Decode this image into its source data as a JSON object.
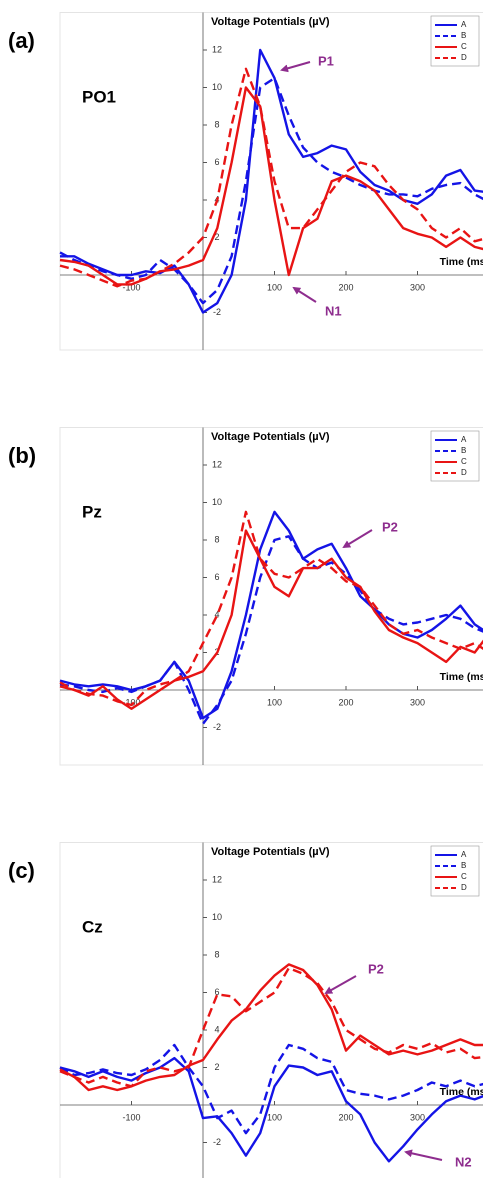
{
  "chart_data": [
    {
      "type": "line",
      "panel_label": "(a)",
      "channel": "PO1",
      "ylabel": "Voltage Potentials (µV)",
      "xlabel": "Time (ms)",
      "x": [
        -200,
        -180,
        -160,
        -140,
        -120,
        -100,
        -80,
        -60,
        -40,
        -20,
        0,
        20,
        40,
        60,
        80,
        100,
        120,
        140,
        160,
        180,
        200,
        220,
        240,
        260,
        280,
        300,
        320,
        340,
        360,
        380,
        400
      ],
      "xlim": [
        -200,
        400
      ],
      "ylim": [
        -4,
        14
      ],
      "xticks": [
        -100,
        100,
        200,
        300
      ],
      "yticks": [
        -2,
        2,
        4,
        6,
        8,
        10,
        12
      ],
      "legend": "upper right",
      "series": [
        {
          "name": "A",
          "color": "#1414e6",
          "dashed": false,
          "values": [
            1.0,
            1.0,
            0.6,
            0.3,
            0,
            0,
            0.2,
            0.1,
            0.5,
            -0.5,
            -2,
            -1.5,
            0,
            4,
            12,
            10.5,
            7.5,
            6.3,
            6.5,
            6.9,
            6.7,
            5.5,
            4.8,
            4.5,
            4.0,
            3.8,
            4.3,
            5.3,
            5.6,
            4.5,
            4.4
          ]
        },
        {
          "name": "B",
          "color": "#1414e6",
          "dashed": true,
          "values": [
            1.2,
            0.8,
            0.5,
            0.2,
            0,
            -0.2,
            0,
            0.8,
            0.3,
            -0.5,
            -1.5,
            -0.8,
            1,
            5,
            10,
            10.5,
            8.5,
            6.8,
            6.0,
            5.5,
            5.2,
            4.8,
            4.5,
            4.3,
            4.3,
            4.2,
            4.6,
            4.8,
            4.9,
            4.3,
            3.9
          ]
        },
        {
          "name": "C",
          "color": "#e81414",
          "dashed": false,
          "values": [
            0.8,
            0.7,
            0.5,
            0,
            -0.5,
            -0.5,
            -0.2,
            0.2,
            0.3,
            0.5,
            0.8,
            2.5,
            6,
            10,
            9,
            4,
            0,
            2.5,
            3,
            5,
            5.3,
            5.0,
            4.5,
            3.5,
            2.5,
            2.2,
            2.0,
            1.5,
            2.0,
            1.5,
            1.3
          ]
        },
        {
          "name": "D",
          "color": "#e81414",
          "dashed": true,
          "values": [
            0.5,
            0.3,
            0,
            -0.3,
            -0.6,
            -0.3,
            -0.2,
            0.2,
            0.6,
            1.2,
            2,
            4,
            8,
            11,
            9,
            5,
            2.5,
            2.5,
            3.5,
            4.5,
            5.5,
            6,
            5.8,
            4.8,
            4.0,
            3.5,
            2.5,
            2.0,
            2.5,
            1.8,
            2.0
          ]
        }
      ],
      "annotations": [
        {
          "text": "P1"
        },
        {
          "text": "N1"
        }
      ]
    },
    {
      "type": "line",
      "panel_label": "(b)",
      "channel": "Pz",
      "ylabel": "Voltage Potentials (µV)",
      "xlabel": "Time (ms)",
      "x": [
        -200,
        -180,
        -160,
        -140,
        -120,
        -100,
        -80,
        -60,
        -40,
        -20,
        0,
        20,
        40,
        60,
        80,
        100,
        120,
        140,
        160,
        180,
        200,
        220,
        240,
        260,
        280,
        300,
        320,
        340,
        360,
        380,
        400
      ],
      "xlim": [
        -200,
        400
      ],
      "ylim": [
        -4,
        14
      ],
      "xticks": [
        -100,
        100,
        200,
        300
      ],
      "yticks": [
        -2,
        2,
        4,
        6,
        8,
        10,
        12
      ],
      "legend": "upper right",
      "series": [
        {
          "name": "A",
          "color": "#1414e6",
          "dashed": false,
          "values": [
            0.5,
            0.3,
            0.2,
            0.3,
            0.2,
            0,
            0.2,
            0.5,
            1.5,
            0.5,
            -1.5,
            -1,
            1,
            4,
            7.5,
            9.5,
            8.5,
            7,
            7.5,
            7.8,
            6.5,
            5,
            4.3,
            3.5,
            3.0,
            2.8,
            3.2,
            3.8,
            4.5,
            3.5,
            3.0
          ]
        },
        {
          "name": "B",
          "color": "#1414e6",
          "dashed": true,
          "values": [
            0.3,
            0.2,
            0,
            -0.1,
            0.1,
            -0.1,
            0.2,
            0.5,
            1.5,
            0,
            -1.8,
            -0.8,
            0.5,
            3,
            6,
            8,
            8.2,
            7,
            6.5,
            6.8,
            6.2,
            5.3,
            4.3,
            3.8,
            3.5,
            3.6,
            3.8,
            4.0,
            3.8,
            3.3,
            3.0
          ]
        },
        {
          "name": "C",
          "color": "#e81414",
          "dashed": false,
          "values": [
            0.2,
            0,
            -0.3,
            0.2,
            -0.5,
            -1,
            -0.5,
            0,
            0.5,
            0.7,
            1,
            2,
            4,
            8.5,
            7,
            5.5,
            5,
            6.5,
            6.5,
            7,
            6,
            5.5,
            4.2,
            3.2,
            2.8,
            2.5,
            2.0,
            1.5,
            2.3,
            2.0,
            3.0
          ]
        },
        {
          "name": "D",
          "color": "#e81414",
          "dashed": true,
          "values": [
            0.4,
            0,
            -0.2,
            -0.3,
            -0.6,
            -0.8,
            0,
            0.3,
            0.5,
            1,
            2.5,
            4,
            6,
            9.5,
            7,
            6.2,
            6,
            6.5,
            7,
            6.5,
            5.8,
            5.5,
            4.5,
            3.5,
            3.0,
            3.2,
            2.8,
            2.5,
            2.2,
            2.5,
            2.0
          ]
        }
      ],
      "annotations": [
        {
          "text": "P2"
        }
      ]
    },
    {
      "type": "line",
      "panel_label": "(c)",
      "channel": "Cz",
      "ylabel": "Voltage Potentials (µV)",
      "xlabel": "Time (ms)",
      "x": [
        -200,
        -180,
        -160,
        -140,
        -120,
        -100,
        -80,
        -60,
        -40,
        -20,
        0,
        20,
        40,
        60,
        80,
        100,
        120,
        140,
        160,
        180,
        200,
        220,
        240,
        260,
        280,
        300,
        320,
        340,
        360,
        380,
        400
      ],
      "xlim": [
        -200,
        400
      ],
      "ylim": [
        -4,
        14
      ],
      "xticks": [
        -100,
        100,
        200,
        300
      ],
      "yticks": [
        -2,
        2,
        4,
        6,
        8,
        10,
        12
      ],
      "legend": "upper right",
      "series": [
        {
          "name": "A",
          "color": "#1414e6",
          "dashed": false,
          "values": [
            2.0,
            1.8,
            1.5,
            1.8,
            1.5,
            1.3,
            1.7,
            2.0,
            2.5,
            1.8,
            -0.7,
            -0.6,
            -1.5,
            -2.7,
            -1.5,
            1.0,
            2.1,
            2.0,
            1.6,
            1.8,
            0.2,
            -0.5,
            -2.0,
            -3.0,
            -2.2,
            -1.3,
            -0.5,
            0.2,
            0.5,
            0.3,
            0.6
          ]
        },
        {
          "name": "B",
          "color": "#1414e6",
          "dashed": true,
          "values": [
            2.0,
            1.6,
            1.7,
            1.9,
            1.7,
            1.6,
            1.9,
            2.4,
            3.2,
            2.0,
            1.0,
            -0.7,
            -0.3,
            -1.5,
            -0.5,
            2.0,
            3.2,
            3.0,
            2.5,
            2.3,
            0.8,
            0.6,
            0.5,
            0.3,
            0.5,
            0.8,
            1.2,
            1.0,
            1.3,
            1.0,
            1.2
          ]
        },
        {
          "name": "C",
          "color": "#e81414",
          "dashed": false,
          "values": [
            1.9,
            1.5,
            0.8,
            1.0,
            0.8,
            1.0,
            1.3,
            1.5,
            1.6,
            2.1,
            2.4,
            3.5,
            4.5,
            5.1,
            6.1,
            6.9,
            7.5,
            7.2,
            6.4,
            5.1,
            2.9,
            3.7,
            3.2,
            2.7,
            2.9,
            2.7,
            2.9,
            3.2,
            3.5,
            3.2,
            3.2
          ]
        },
        {
          "name": "D",
          "color": "#e81414",
          "dashed": true,
          "values": [
            1.8,
            1.5,
            1.2,
            1.5,
            1.2,
            1.0,
            1.8,
            2.0,
            1.8,
            2.0,
            4.0,
            5.9,
            5.8,
            5.0,
            5.5,
            6.0,
            7.3,
            7.0,
            6.5,
            5.5,
            4.0,
            3.5,
            3.0,
            2.8,
            3.2,
            3.0,
            3.3,
            2.8,
            3.0,
            2.5,
            2.6
          ]
        }
      ],
      "annotations": [
        {
          "text": "P2"
        },
        {
          "text": "N2"
        }
      ]
    }
  ]
}
